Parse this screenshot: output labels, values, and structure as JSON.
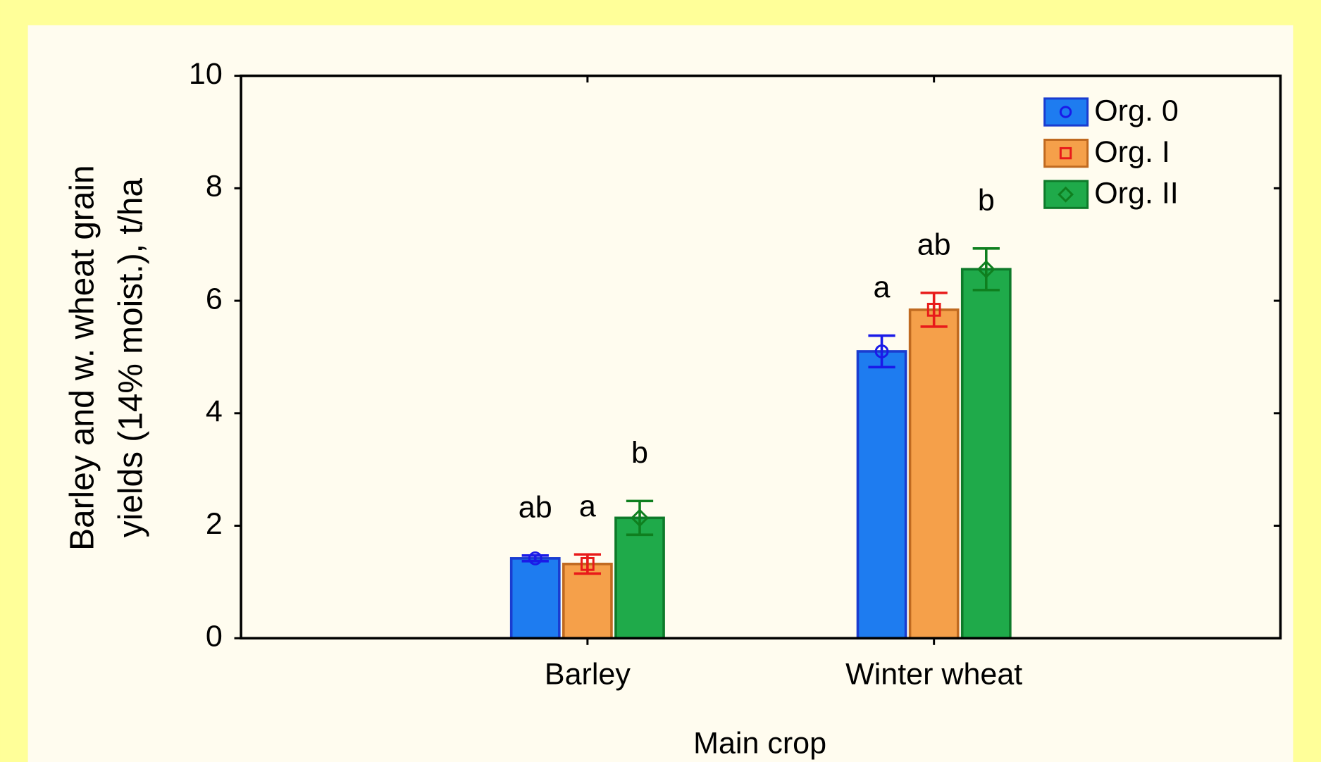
{
  "chart_data": {
    "type": "bar",
    "ylabel": [
      "Barley and w. wheat grain",
      "yields (14% moist.), t/ha"
    ],
    "xlabel": "Main crop",
    "categories": [
      "Barley",
      "Winter wheat"
    ],
    "series": [
      {
        "name": "Org. 0",
        "color": "#1e7cf0",
        "edge": "#1a3cd0",
        "errcolor": "#1a1ae8",
        "marker": "circle",
        "values": [
          1.42,
          5.1
        ],
        "errors": [
          0.05,
          0.28
        ],
        "letters": [
          "ab",
          "a"
        ]
      },
      {
        "name": "Org. I",
        "color": "#f5a04a",
        "edge": "#c06a20",
        "errcolor": "#e81a1a",
        "marker": "square",
        "values": [
          1.32,
          5.84
        ],
        "errors": [
          0.17,
          0.3
        ],
        "letters": [
          "a",
          "ab"
        ]
      },
      {
        "name": "Org. II",
        "color": "#1faa4a",
        "edge": "#0e7a2a",
        "errcolor": "#0f7f1f",
        "marker": "diamond",
        "values": [
          2.14,
          6.56
        ],
        "errors": [
          0.3,
          0.37
        ],
        "letters": [
          "b",
          "b"
        ]
      }
    ],
    "ylim": [
      0,
      10
    ],
    "yticks": [
      0,
      2,
      4,
      6,
      8,
      10
    ],
    "legend": "upper right"
  }
}
